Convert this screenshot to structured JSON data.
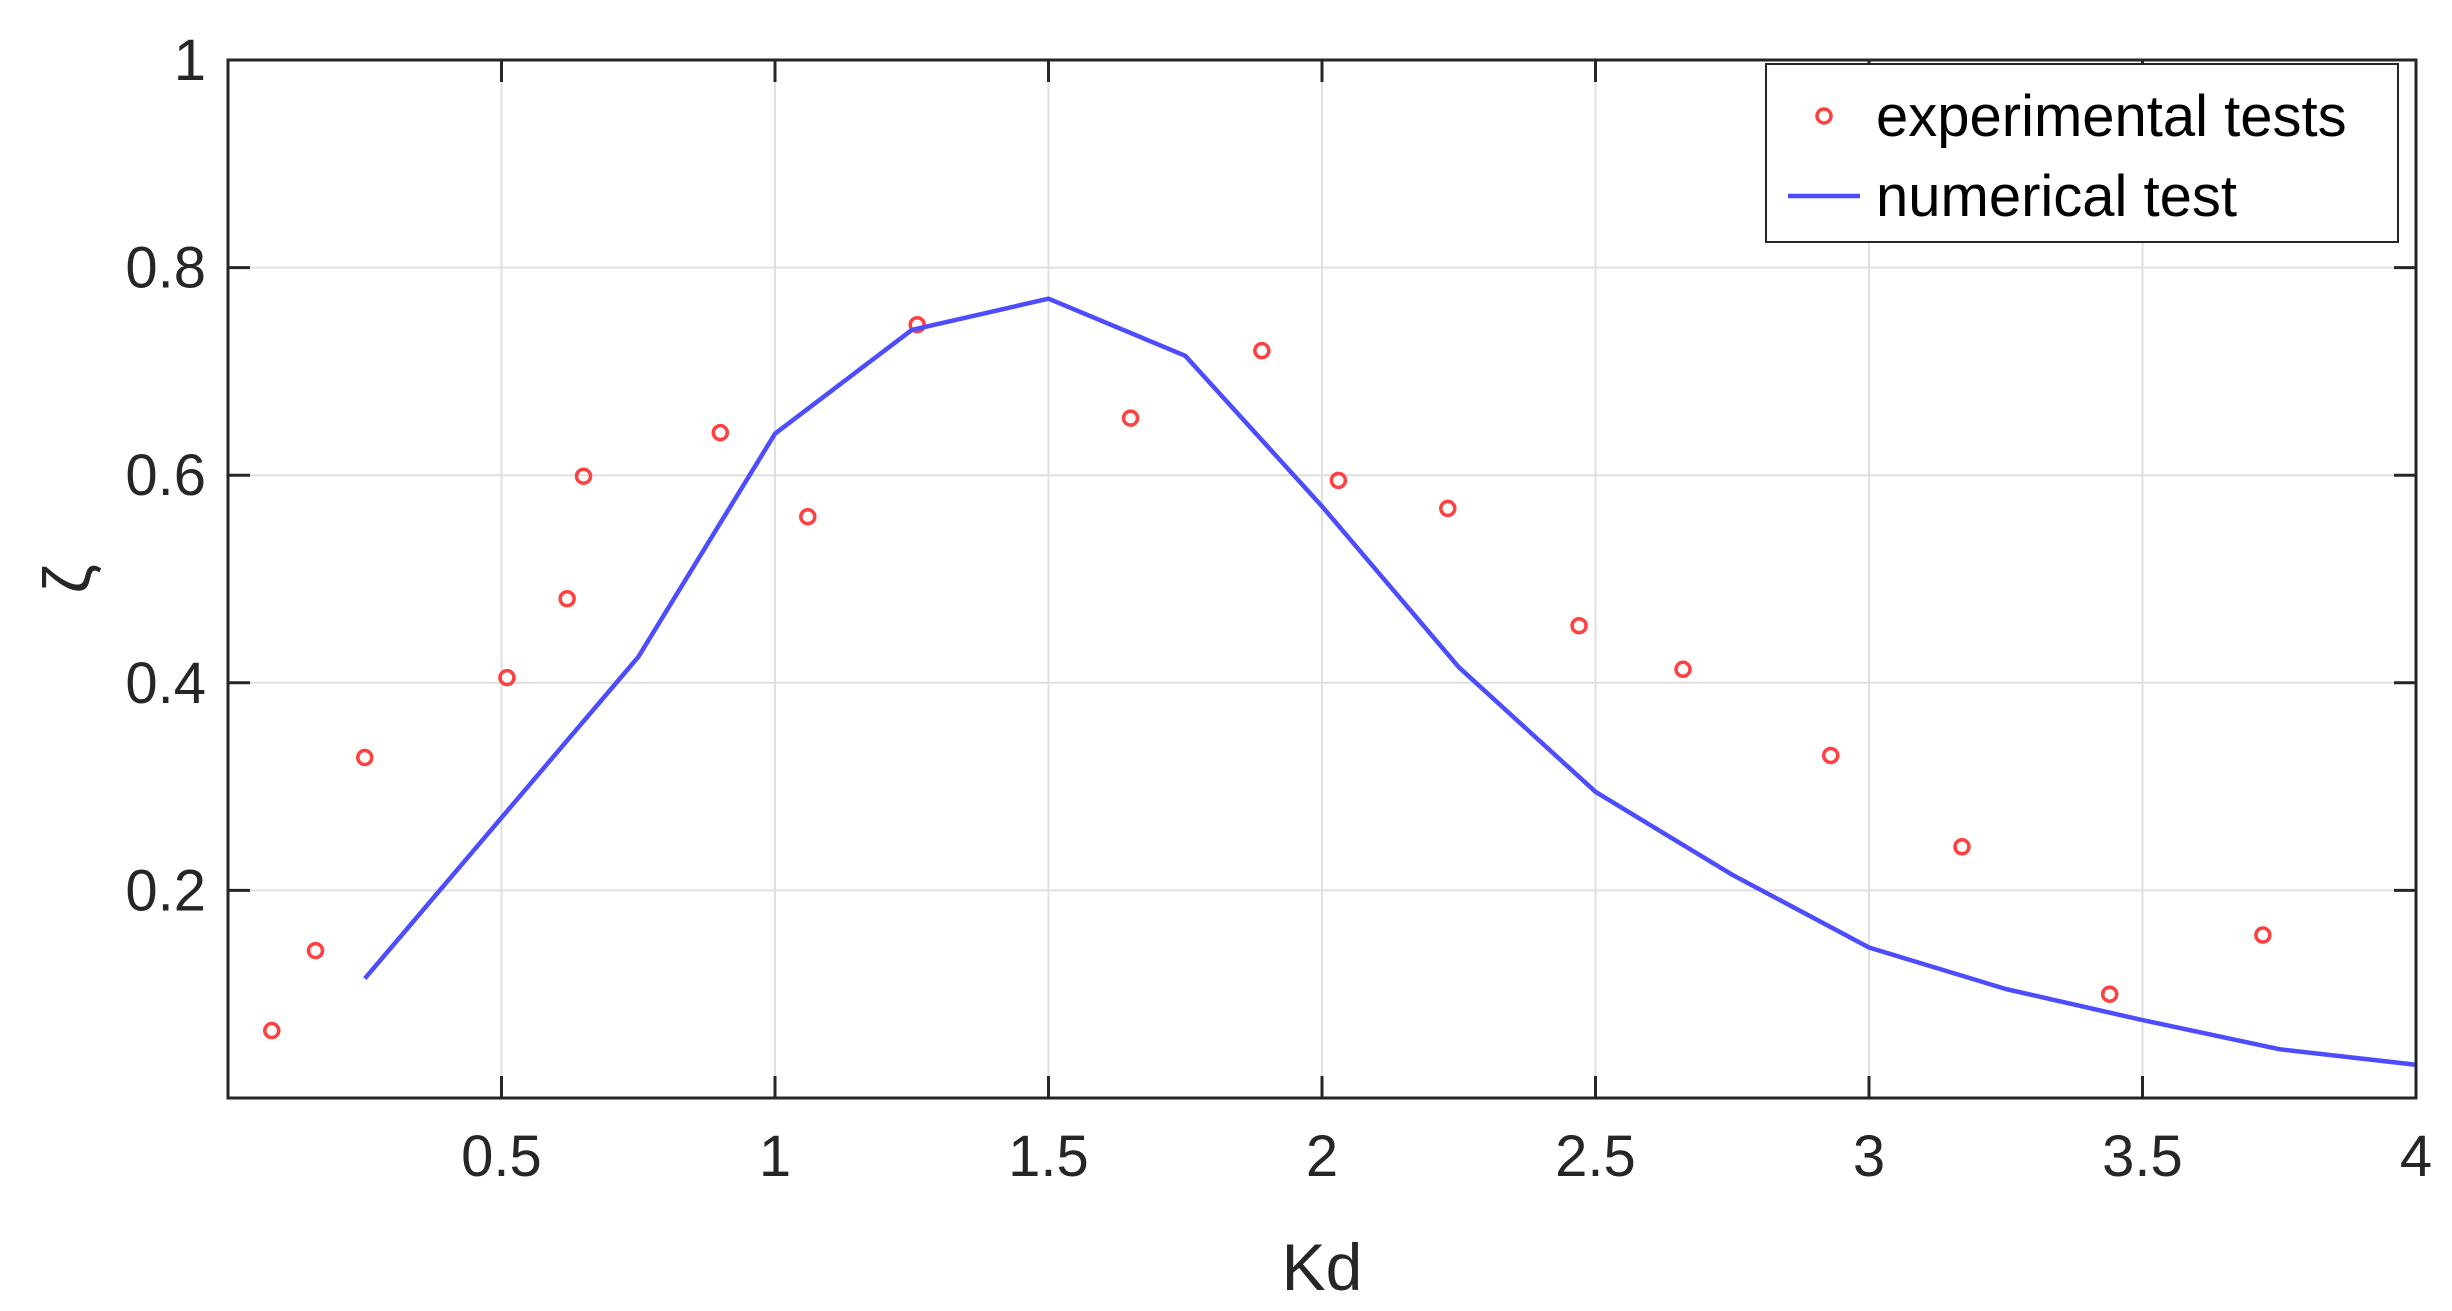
{
  "chart_data": {
    "type": "line",
    "xlabel": "Kd",
    "ylabel": "ζ",
    "xlim": [
      0,
      4
    ],
    "ylim": [
      0,
      1
    ],
    "x_ticks": [
      0.5,
      1,
      1.5,
      2,
      2.5,
      3,
      3.5,
      4
    ],
    "x_tick_labels": [
      "0.5",
      "1",
      "1.5",
      "2",
      "2.5",
      "3",
      "3.5",
      "4"
    ],
    "y_ticks": [
      0.2,
      0.4,
      0.6,
      0.8,
      1
    ],
    "y_tick_labels": [
      "0.2",
      "0.4",
      "0.6",
      "0.8",
      "1"
    ],
    "grid": true,
    "legend_position": "top-right",
    "series": [
      {
        "name": "experimental tests",
        "type": "scatter",
        "color": "#ff4040",
        "points": [
          {
            "x": 0.08,
            "y": 0.065
          },
          {
            "x": 0.16,
            "y": 0.142
          },
          {
            "x": 0.25,
            "y": 0.328
          },
          {
            "x": 0.51,
            "y": 0.405
          },
          {
            "x": 0.62,
            "y": 0.481
          },
          {
            "x": 0.65,
            "y": 0.599
          },
          {
            "x": 0.9,
            "y": 0.641
          },
          {
            "x": 1.06,
            "y": 0.56
          },
          {
            "x": 1.26,
            "y": 0.745
          },
          {
            "x": 1.65,
            "y": 0.655
          },
          {
            "x": 1.89,
            "y": 0.72
          },
          {
            "x": 2.03,
            "y": 0.595
          },
          {
            "x": 2.23,
            "y": 0.568
          },
          {
            "x": 2.47,
            "y": 0.455
          },
          {
            "x": 2.66,
            "y": 0.413
          },
          {
            "x": 2.93,
            "y": 0.33
          },
          {
            "x": 3.17,
            "y": 0.242
          },
          {
            "x": 3.44,
            "y": 0.1
          },
          {
            "x": 3.72,
            "y": 0.157
          }
        ]
      },
      {
        "name": "numerical test",
        "type": "line",
        "color": "#4d4dff",
        "points": [
          {
            "x": 0.25,
            "y": 0.115
          },
          {
            "x": 0.5,
            "y": 0.27
          },
          {
            "x": 0.75,
            "y": 0.425
          },
          {
            "x": 1.0,
            "y": 0.64
          },
          {
            "x": 1.25,
            "y": 0.74
          },
          {
            "x": 1.5,
            "y": 0.77
          },
          {
            "x": 1.75,
            "y": 0.715
          },
          {
            "x": 2.0,
            "y": 0.57
          },
          {
            "x": 2.25,
            "y": 0.415
          },
          {
            "x": 2.5,
            "y": 0.295
          },
          {
            "x": 2.75,
            "y": 0.215
          },
          {
            "x": 3.0,
            "y": 0.145
          },
          {
            "x": 3.25,
            "y": 0.105
          },
          {
            "x": 3.5,
            "y": 0.075
          },
          {
            "x": 3.75,
            "y": 0.047
          },
          {
            "x": 4.0,
            "y": 0.032
          }
        ]
      }
    ]
  }
}
